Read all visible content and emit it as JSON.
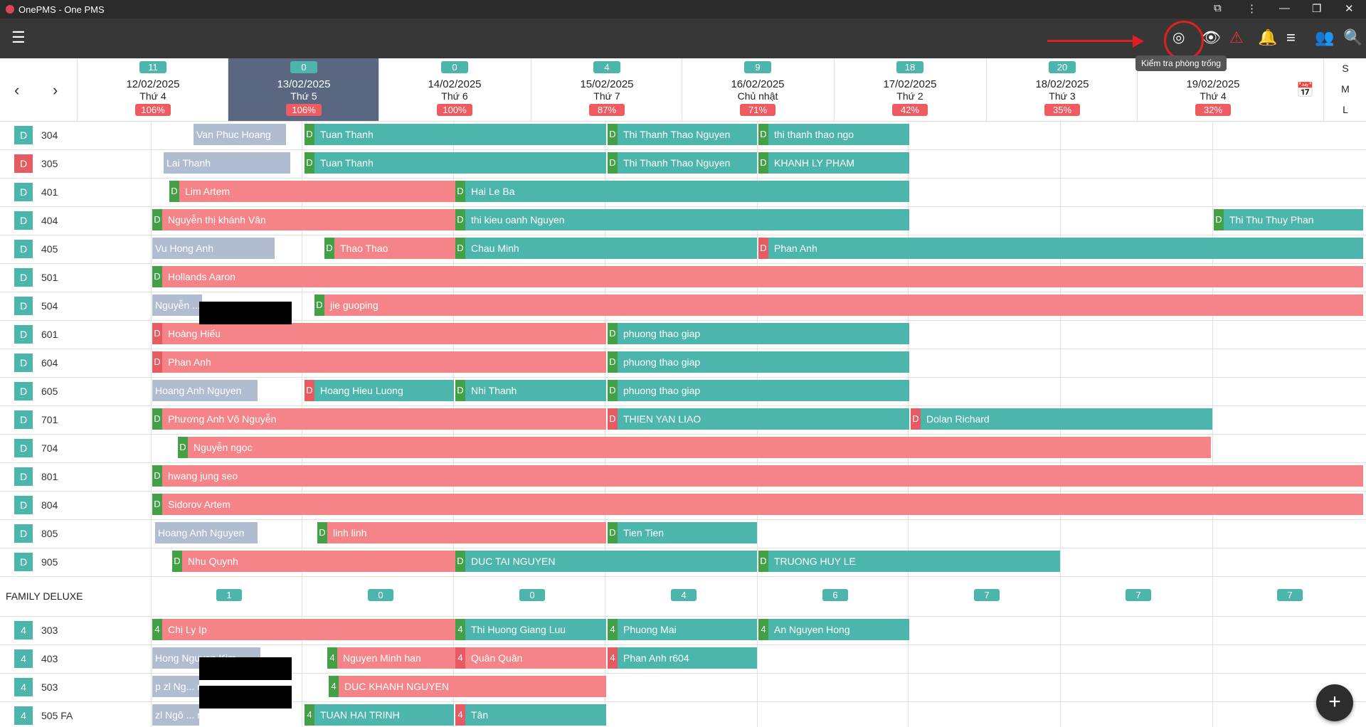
{
  "window": {
    "title": "OnePMS - One PMS"
  },
  "toolbar": {
    "menu_icon": "menu-icon",
    "icons": [
      "availability-check-icon",
      "eye-icon",
      "warning-icon",
      "notification-bell-icon",
      "list-icon",
      "add-guest-icon",
      "search-icon"
    ],
    "tooltip": "Kiểm tra phòng trống"
  },
  "dates": [
    {
      "count": "11",
      "date": "12/02/2025",
      "day": "Thứ 4",
      "occ": "106%"
    },
    {
      "count": "0",
      "date": "13/02/2025",
      "day": "Thứ 5",
      "occ": "106%"
    },
    {
      "count": "0",
      "date": "14/02/2025",
      "day": "Thứ 6",
      "occ": "100%"
    },
    {
      "count": "4",
      "date": "15/02/2025",
      "day": "Thứ 7",
      "occ": "87%"
    },
    {
      "count": "9",
      "date": "16/02/2025",
      "day": "Chủ nhật",
      "occ": "71%"
    },
    {
      "count": "18",
      "date": "17/02/2025",
      "day": "Thứ 2",
      "occ": "42%"
    },
    {
      "count": "20",
      "date": "18/02/2025",
      "day": "Thứ 3",
      "occ": "35%"
    },
    {
      "count": "",
      "date": "19/02/2025",
      "day": "Thứ 4",
      "occ": "32%"
    }
  ],
  "size_options": [
    "S",
    "M",
    "L"
  ],
  "colors": {
    "clean": "#4db6ac",
    "dirty": "#e55b61",
    "pending": "#b0bccf",
    "booking_red": "#f58488",
    "booking_teal": "#4db6ac",
    "tag_green": "#43a047"
  },
  "rooms_a": [
    {
      "status": "D",
      "status_color": "teal",
      "number": "304",
      "bookings": [
        {
          "text": "Van Phuc Hoang",
          "tag": "",
          "color": "grey"
        },
        {
          "text": "Tuan Thanh",
          "tag": "D",
          "tagc": "green",
          "color": "teal"
        },
        {
          "text": "Thi Thanh Thao Nguyen",
          "tag": "D",
          "tagc": "green",
          "color": "teal"
        },
        {
          "text": "thi thanh thao ngo",
          "tag": "D",
          "tagc": "green",
          "color": "teal"
        }
      ]
    },
    {
      "status": "D",
      "status_color": "red",
      "number": "305",
      "bookings": [
        {
          "text": "Lai Thanh",
          "tag": "",
          "color": "grey"
        },
        {
          "text": "Tuan Thanh",
          "tag": "D",
          "tagc": "green",
          "color": "teal"
        },
        {
          "text": "Thi Thanh Thao Nguyen",
          "tag": "D",
          "tagc": "green",
          "color": "teal"
        },
        {
          "text": "KHANH LY PHAM",
          "tag": "D",
          "tagc": "green",
          "color": "teal"
        }
      ]
    },
    {
      "status": "D",
      "status_color": "teal",
      "number": "401",
      "bookings": [
        {
          "text": "Lim Artem",
          "tag": "D",
          "tagc": "green",
          "color": "red"
        },
        {
          "text": "Hai Le Ba",
          "tag": "D",
          "tagc": "green",
          "color": "teal"
        }
      ]
    },
    {
      "status": "D",
      "status_color": "teal",
      "number": "404",
      "bookings": [
        {
          "text": "Nguyễn thị khánh Vân",
          "tag": "D",
          "tagc": "green",
          "color": "red"
        },
        {
          "text": "thi kieu oanh Nguyen",
          "tag": "D",
          "tagc": "green",
          "color": "teal"
        },
        {
          "text": "Thi Thu Thuy Phan",
          "tag": "D",
          "tagc": "green",
          "color": "teal"
        }
      ]
    },
    {
      "status": "D",
      "status_color": "teal",
      "number": "405",
      "bookings": [
        {
          "text": "Vu Hong Anh",
          "tag": "",
          "color": "grey"
        },
        {
          "text": "Thao Thao",
          "tag": "D",
          "tagc": "green",
          "color": "red"
        },
        {
          "text": "Chau Minh",
          "tag": "D",
          "tagc": "green",
          "color": "teal"
        },
        {
          "text": "Phan Anh",
          "tag": "D",
          "tagc": "red",
          "color": "teal"
        }
      ]
    },
    {
      "status": "D",
      "status_color": "teal",
      "number": "501",
      "bookings": [
        {
          "text": "Hollands Aaron",
          "tag": "D",
          "tagc": "green",
          "color": "red"
        }
      ]
    },
    {
      "status": "D",
      "status_color": "teal",
      "number": "504",
      "bookings": [
        {
          "text": "Nguyễn ...",
          "tag": "",
          "color": "grey"
        },
        {
          "text": "jie guoping",
          "tag": "D",
          "tagc": "green",
          "color": "red"
        }
      ]
    },
    {
      "status": "D",
      "status_color": "teal",
      "number": "601",
      "bookings": [
        {
          "text": "Hoàng Hiếu",
          "tag": "D",
          "tagc": "red",
          "color": "red"
        },
        {
          "text": "phuong thao giap",
          "tag": "D",
          "tagc": "green",
          "color": "teal"
        }
      ]
    },
    {
      "status": "D",
      "status_color": "teal",
      "number": "604",
      "bookings": [
        {
          "text": "Phan Anh",
          "tag": "D",
          "tagc": "red",
          "color": "red"
        },
        {
          "text": "phuong thao giap",
          "tag": "D",
          "tagc": "green",
          "color": "teal"
        }
      ]
    },
    {
      "status": "D",
      "status_color": "teal",
      "number": "605",
      "bookings": [
        {
          "text": "Hoang Anh Nguyen",
          "tag": "",
          "color": "grey"
        },
        {
          "text": "Hoang Hieu Luong",
          "tag": "D",
          "tagc": "red",
          "color": "teal"
        },
        {
          "text": "Nhi Thanh",
          "tag": "D",
          "tagc": "green",
          "color": "teal"
        },
        {
          "text": "phuong thao giap",
          "tag": "D",
          "tagc": "green",
          "color": "teal"
        }
      ]
    },
    {
      "status": "D",
      "status_color": "teal",
      "number": "701",
      "bookings": [
        {
          "text": "Phương Anh Võ Nguyễn",
          "tag": "D",
          "tagc": "green",
          "color": "red"
        },
        {
          "text": "THIEN YAN LIAO",
          "tag": "D",
          "tagc": "red",
          "color": "teal"
        },
        {
          "text": "Dolan Richard",
          "tag": "D",
          "tagc": "red",
          "color": "teal"
        }
      ]
    },
    {
      "status": "D",
      "status_color": "teal",
      "number": "704",
      "bookings": [
        {
          "text": "Nguyễn ngọc",
          "tag": "D",
          "tagc": "green",
          "color": "red"
        }
      ]
    },
    {
      "status": "D",
      "status_color": "teal",
      "number": "801",
      "bookings": [
        {
          "text": "hwang jung seo",
          "tag": "D",
          "tagc": "green",
          "color": "red"
        }
      ]
    },
    {
      "status": "D",
      "status_color": "teal",
      "number": "804",
      "bookings": [
        {
          "text": "Sidorov Artem",
          "tag": "D",
          "tagc": "green",
          "color": "red"
        }
      ]
    },
    {
      "status": "D",
      "status_color": "teal",
      "number": "805",
      "bookings": [
        {
          "text": "Hoang Anh Nguyen",
          "tag": "",
          "color": "grey"
        },
        {
          "text": "linh linh",
          "tag": "D",
          "tagc": "green",
          "color": "red"
        },
        {
          "text": "Tien Tien",
          "tag": "D",
          "tagc": "green",
          "color": "teal"
        }
      ]
    },
    {
      "status": "D",
      "status_color": "teal",
      "number": "905",
      "bookings": [
        {
          "text": "Nhu Quynh",
          "tag": "D",
          "tagc": "green",
          "color": "red"
        },
        {
          "text": "DUC TAI NGUYEN",
          "tag": "D",
          "tagc": "green",
          "color": "teal"
        },
        {
          "text": "TRUONG HUY LE",
          "tag": "D",
          "tagc": "green",
          "color": "teal"
        }
      ]
    }
  ],
  "section": {
    "name": "FAMILY DELUXE",
    "counts": [
      "1",
      "0",
      "0",
      "4",
      "6",
      "7",
      "7",
      "7"
    ]
  },
  "rooms_b": [
    {
      "status": "4",
      "status_color": "teal",
      "number": "303",
      "bookings": [
        {
          "text": "Chị Ly Ip",
          "tag": "4",
          "tagc": "green",
          "color": "red"
        },
        {
          "text": "Thi Huong Giang Luu",
          "tag": "4",
          "tagc": "green",
          "color": "teal"
        },
        {
          "text": "Phuong Mai",
          "tag": "4",
          "tagc": "green",
          "color": "teal"
        },
        {
          "text": "An Nguyen Hong",
          "tag": "4",
          "tagc": "green",
          "color": "teal"
        }
      ]
    },
    {
      "status": "4",
      "status_color": "teal",
      "number": "403",
      "bookings": [
        {
          "text": "Hong Nguyen Kim",
          "tag": "",
          "color": "grey"
        },
        {
          "text": "Nguyen Minh han",
          "tag": "4",
          "tagc": "green",
          "color": "red"
        },
        {
          "text": "Quân Quân",
          "tag": "4",
          "tagc": "red",
          "color": "red"
        },
        {
          "text": "Phan Anh r604",
          "tag": "4",
          "tagc": "red",
          "color": "teal"
        }
      ]
    },
    {
      "status": "4",
      "status_color": "teal",
      "number": "503",
      "bookings": [
        {
          "text": "p zl Ng... n",
          "tag": "",
          "color": "grey"
        },
        {
          "text": "DUC KHANH NGUYEN",
          "tag": "4",
          "tagc": "green",
          "color": "red"
        }
      ]
    },
    {
      "status": "4",
      "status_color": "teal",
      "number": "505 FA",
      "bookings": [
        {
          "text": "zl Ngô ... n",
          "tag": "",
          "color": "grey"
        },
        {
          "text": "TUAN HAI TRINH",
          "tag": "4",
          "tagc": "green",
          "color": "teal"
        },
        {
          "text": "Tân",
          "tag": "4",
          "tagc": "red",
          "color": "teal"
        }
      ]
    }
  ],
  "fab": {
    "label": "+"
  }
}
